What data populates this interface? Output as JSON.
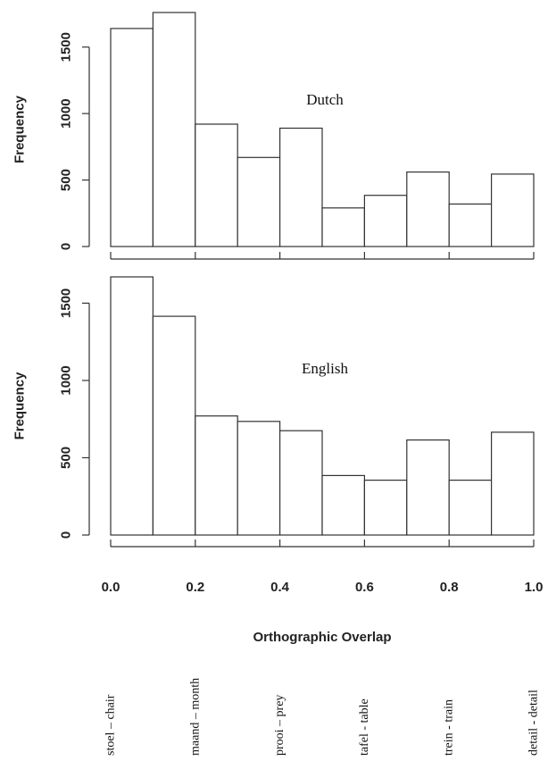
{
  "chart_data": [
    {
      "type": "bar",
      "panel_label": "Dutch",
      "ylabel": "Frequency",
      "bin_edges": [
        0.0,
        0.1,
        0.2,
        0.3,
        0.4,
        0.5,
        0.6,
        0.7,
        0.8,
        0.9,
        1.0
      ],
      "values": [
        1640,
        1760,
        920,
        670,
        890,
        290,
        385,
        560,
        320,
        545
      ],
      "yticks": [
        0,
        500,
        1000,
        1500
      ],
      "ylim": [
        0,
        1760
      ],
      "grid": false
    },
    {
      "type": "bar",
      "panel_label": "English",
      "ylabel": "Frequency",
      "bin_edges": [
        0.0,
        0.1,
        0.2,
        0.3,
        0.4,
        0.5,
        0.6,
        0.7,
        0.8,
        0.9,
        1.0
      ],
      "values": [
        1670,
        1415,
        770,
        735,
        675,
        385,
        355,
        615,
        355,
        665
      ],
      "yticks": [
        0,
        500,
        1000,
        1500
      ],
      "ylim": [
        0,
        1670
      ],
      "grid": false
    }
  ],
  "x_axis": {
    "title": "Orthographic Overlap",
    "ticks": [
      {
        "value": 0.0,
        "label": "0.0"
      },
      {
        "value": 0.2,
        "label": "0.2"
      },
      {
        "value": 0.4,
        "label": "0.4"
      },
      {
        "value": 0.6,
        "label": "0.6"
      },
      {
        "value": 0.8,
        "label": "0.8"
      },
      {
        "value": 1.0,
        "label": "1.0"
      }
    ]
  },
  "examples": [
    {
      "x": 0.0,
      "label": "stoel – chair"
    },
    {
      "x": 0.2,
      "label": "maand – month"
    },
    {
      "x": 0.4,
      "label": "prooi – prey"
    },
    {
      "x": 0.6,
      "label": "tafel - table"
    },
    {
      "x": 0.8,
      "label": "trein - train"
    },
    {
      "x": 1.0,
      "label": "detail - detail"
    }
  ]
}
